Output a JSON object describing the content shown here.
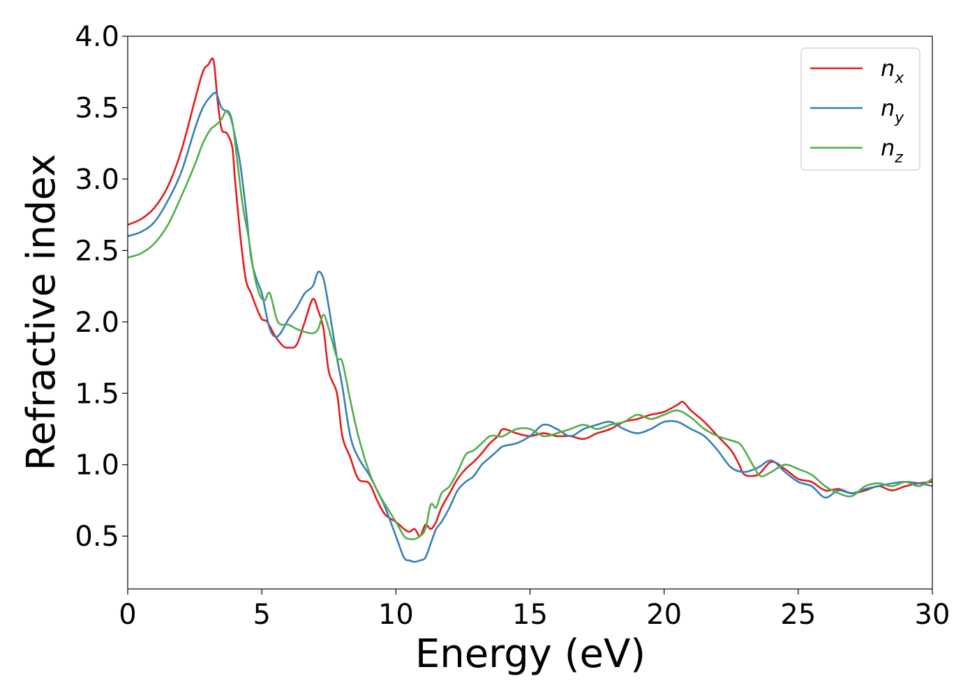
{
  "chart_data": {
    "type": "line",
    "title": "",
    "xlabel": "Energy (eV)",
    "ylabel": "Refractive index",
    "xlim": [
      0,
      30
    ],
    "ylim": [
      0.13,
      4.0
    ],
    "xticks": [
      "0",
      "5",
      "10",
      "15",
      "20",
      "25",
      "30"
    ],
    "yticks": [
      "0.5",
      "1.0",
      "1.5",
      "2.0",
      "2.5",
      "3.0",
      "3.5",
      "4.0"
    ],
    "grid": false,
    "legend_position": "top-right",
    "series": [
      {
        "name": "n",
        "sub": "x",
        "color": "#e41a1c",
        "x": [
          0,
          0.5,
          1.0,
          1.5,
          2.0,
          2.5,
          2.8,
          3.0,
          3.2,
          3.35,
          3.5,
          3.7,
          3.9,
          4.0,
          4.2,
          4.4,
          4.6,
          4.8,
          5.0,
          5.2,
          5.5,
          5.8,
          6.0,
          6.3,
          6.6,
          6.9,
          7.1,
          7.3,
          7.5,
          7.8,
          8.0,
          8.3,
          8.6,
          9.0,
          9.3,
          9.6,
          10.0,
          10.3,
          10.5,
          10.7,
          10.9,
          11.1,
          11.3,
          11.5,
          11.7,
          12.0,
          12.3,
          12.6,
          12.9,
          13.2,
          13.5,
          13.8,
          14.0,
          14.5,
          15.0,
          15.5,
          16.0,
          16.5,
          17.0,
          17.5,
          18.0,
          18.5,
          19.0,
          19.5,
          20.0,
          20.5,
          20.7,
          21.0,
          21.5,
          22.0,
          22.5,
          22.8,
          23.0,
          23.5,
          24.0,
          24.5,
          25.0,
          25.5,
          26.0,
          26.5,
          27.0,
          27.5,
          28.0,
          28.5,
          29.0,
          29.5,
          30.0
        ],
        "y": [
          2.68,
          2.72,
          2.8,
          2.95,
          3.2,
          3.55,
          3.75,
          3.8,
          3.83,
          3.55,
          3.35,
          3.32,
          3.22,
          3.0,
          2.6,
          2.3,
          2.2,
          2.1,
          2.02,
          2.0,
          1.9,
          1.83,
          1.82,
          1.84,
          2.0,
          2.16,
          2.08,
          1.95,
          1.65,
          1.5,
          1.2,
          1.05,
          0.9,
          0.87,
          0.75,
          0.65,
          0.6,
          0.55,
          0.53,
          0.55,
          0.5,
          0.58,
          0.55,
          0.6,
          0.7,
          0.8,
          0.9,
          0.97,
          1.02,
          1.08,
          1.15,
          1.2,
          1.25,
          1.22,
          1.2,
          1.22,
          1.2,
          1.2,
          1.18,
          1.22,
          1.25,
          1.3,
          1.32,
          1.35,
          1.37,
          1.42,
          1.44,
          1.38,
          1.3,
          1.2,
          1.1,
          1.0,
          0.93,
          0.93,
          1.02,
          0.97,
          0.9,
          0.88,
          0.82,
          0.83,
          0.8,
          0.82,
          0.85,
          0.82,
          0.85,
          0.87,
          0.88
        ]
      },
      {
        "name": "n",
        "sub": "y",
        "color": "#377eb8",
        "x": [
          0,
          0.5,
          1.0,
          1.5,
          2.0,
          2.5,
          2.8,
          3.1,
          3.3,
          3.5,
          3.8,
          4.0,
          4.2,
          4.4,
          4.6,
          4.8,
          5.0,
          5.3,
          5.6,
          6.0,
          6.3,
          6.6,
          6.9,
          7.1,
          7.3,
          7.5,
          7.8,
          8.0,
          8.3,
          8.6,
          9.0,
          9.3,
          9.6,
          10.0,
          10.3,
          10.5,
          10.7,
          10.9,
          11.1,
          11.3,
          11.5,
          11.7,
          12.0,
          12.3,
          12.6,
          12.9,
          13.2,
          13.5,
          13.8,
          14.0,
          14.5,
          15.0,
          15.5,
          16.0,
          16.5,
          17.0,
          17.5,
          18.0,
          18.5,
          19.0,
          19.5,
          20.0,
          20.5,
          21.0,
          21.5,
          22.0,
          22.5,
          23.0,
          23.5,
          24.0,
          24.5,
          25.0,
          25.5,
          26.0,
          26.5,
          27.0,
          27.5,
          28.0,
          28.5,
          29.0,
          29.5,
          30.0
        ],
        "y": [
          2.6,
          2.63,
          2.7,
          2.85,
          3.05,
          3.35,
          3.5,
          3.58,
          3.6,
          3.5,
          3.45,
          3.3,
          3.1,
          2.8,
          2.45,
          2.3,
          2.2,
          1.95,
          1.9,
          2.02,
          2.1,
          2.2,
          2.25,
          2.35,
          2.3,
          2.1,
          1.75,
          1.55,
          1.2,
          1.05,
          0.93,
          0.82,
          0.7,
          0.5,
          0.35,
          0.33,
          0.32,
          0.33,
          0.35,
          0.45,
          0.55,
          0.6,
          0.7,
          0.82,
          0.88,
          0.92,
          1.0,
          1.05,
          1.1,
          1.13,
          1.15,
          1.2,
          1.28,
          1.25,
          1.2,
          1.25,
          1.28,
          1.3,
          1.25,
          1.22,
          1.25,
          1.3,
          1.3,
          1.25,
          1.2,
          1.1,
          0.98,
          0.95,
          0.98,
          1.03,
          0.95,
          0.88,
          0.85,
          0.77,
          0.82,
          0.8,
          0.83,
          0.85,
          0.87,
          0.88,
          0.87,
          0.85
        ]
      },
      {
        "name": "n",
        "sub": "z",
        "color": "#4daf4a",
        "x": [
          0,
          0.5,
          1.0,
          1.5,
          2.0,
          2.5,
          2.8,
          3.1,
          3.3,
          3.5,
          3.7,
          3.9,
          4.1,
          4.3,
          4.5,
          4.7,
          4.9,
          5.1,
          5.3,
          5.6,
          6.0,
          6.3,
          6.6,
          6.9,
          7.1,
          7.3,
          7.5,
          7.8,
          8.0,
          8.3,
          8.6,
          9.0,
          9.3,
          9.6,
          10.0,
          10.3,
          10.5,
          10.7,
          10.9,
          11.1,
          11.3,
          11.5,
          11.7,
          12.0,
          12.3,
          12.6,
          12.9,
          13.2,
          13.5,
          13.8,
          14.0,
          14.5,
          15.0,
          15.5,
          16.0,
          16.5,
          17.0,
          17.5,
          18.0,
          18.5,
          19.0,
          19.5,
          20.0,
          20.5,
          21.0,
          21.5,
          22.0,
          22.5,
          22.8,
          23.0,
          23.3,
          23.6,
          24.0,
          24.5,
          25.0,
          25.5,
          26.0,
          26.5,
          27.0,
          27.5,
          28.0,
          28.5,
          29.0,
          29.5,
          30.0
        ],
        "y": [
          2.45,
          2.48,
          2.55,
          2.68,
          2.88,
          3.1,
          3.25,
          3.35,
          3.38,
          3.42,
          3.48,
          3.4,
          3.1,
          2.8,
          2.6,
          2.35,
          2.2,
          2.15,
          2.2,
          2.0,
          1.98,
          1.95,
          1.93,
          1.92,
          1.95,
          2.05,
          1.95,
          1.75,
          1.72,
          1.45,
          1.2,
          0.95,
          0.82,
          0.72,
          0.6,
          0.5,
          0.48,
          0.48,
          0.5,
          0.55,
          0.72,
          0.7,
          0.8,
          0.85,
          0.95,
          1.07,
          1.1,
          1.15,
          1.2,
          1.2,
          1.2,
          1.25,
          1.25,
          1.2,
          1.22,
          1.25,
          1.28,
          1.25,
          1.28,
          1.3,
          1.35,
          1.32,
          1.35,
          1.38,
          1.33,
          1.25,
          1.2,
          1.17,
          1.15,
          1.1,
          1.0,
          0.92,
          0.95,
          1.0,
          0.97,
          0.93,
          0.85,
          0.8,
          0.78,
          0.85,
          0.87,
          0.85,
          0.88,
          0.85,
          0.9
        ]
      }
    ]
  }
}
